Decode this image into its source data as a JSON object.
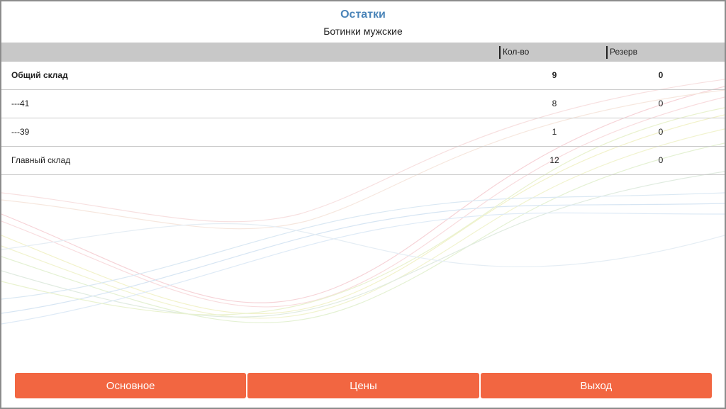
{
  "header": {
    "title": "Остатки",
    "subtitle": "Ботинки мужские"
  },
  "columns": {
    "qty": "Кол-во",
    "reserve": "Резерв"
  },
  "rows": [
    {
      "name": "Общий склад",
      "qty": "9",
      "reserve": "0",
      "bold": true
    },
    {
      "name": "---41",
      "qty": "8",
      "reserve": "0",
      "bold": false
    },
    {
      "name": "---39",
      "qty": "1",
      "reserve": "0",
      "bold": false
    },
    {
      "name": "Главный склад",
      "qty": "12",
      "reserve": "0",
      "bold": false
    }
  ],
  "footer": {
    "main_label": "Основное",
    "prices_label": "Цены",
    "exit_label": "Выход"
  },
  "colors": {
    "title": "#4a84b8",
    "button": "#f26641",
    "header_bar": "#c8c8c8"
  }
}
